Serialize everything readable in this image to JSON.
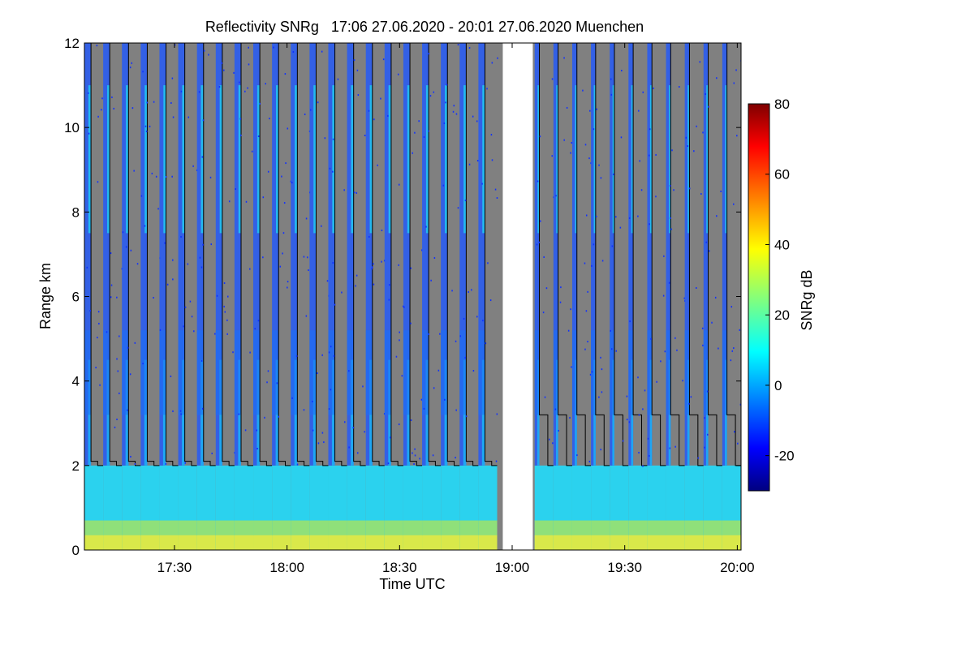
{
  "chart_data": {
    "type": "heatmap",
    "title": "Reflectivity SNRg   17:06 27.06.2020 - 20:01 27.06.2020 Muenchen",
    "xlabel": "Time UTC",
    "ylabel": "Range km",
    "x_ticks": [
      "17:30",
      "18:00",
      "18:30",
      "19:00",
      "19:30",
      "20:00"
    ],
    "x_tick_minutes": [
      1050,
      1080,
      1110,
      1140,
      1170,
      1200
    ],
    "xlim_minutes": [
      1026,
      1201
    ],
    "y_ticks": [
      "0",
      "2",
      "4",
      "6",
      "8",
      "10",
      "12"
    ],
    "y_tick_values": [
      0,
      2,
      4,
      6,
      8,
      10,
      12
    ],
    "ylim": [
      0,
      12
    ],
    "data_gap_minutes": [
      1137.5,
      1145.5
    ],
    "background_color": "#808080",
    "colorbar": {
      "label": "SNRg dB",
      "range": [
        -30,
        80
      ],
      "ticks": [
        "-20",
        "0",
        "20",
        "40",
        "60",
        "80"
      ],
      "tick_values": [
        -20,
        0,
        20,
        40,
        60,
        80
      ],
      "colormap": "jet"
    },
    "cycles_first_segment": {
      "start_minutes": 1026,
      "period_minutes": 5,
      "count": 22,
      "return_fraction": 0.35,
      "step_km": 2.1,
      "step_fraction": 0.55
    },
    "cycles_second_segment": {
      "start_minutes": 1146,
      "period_minutes": 5,
      "count": 11,
      "return_fraction": 0.25,
      "step_km": 3.2,
      "step_fraction": 0.6
    },
    "upper_layer_km": [
      7.5,
      11
    ],
    "mid_layer_km": [
      3.2,
      5.2
    ],
    "boundary_layer_top_km": 2.0
  }
}
